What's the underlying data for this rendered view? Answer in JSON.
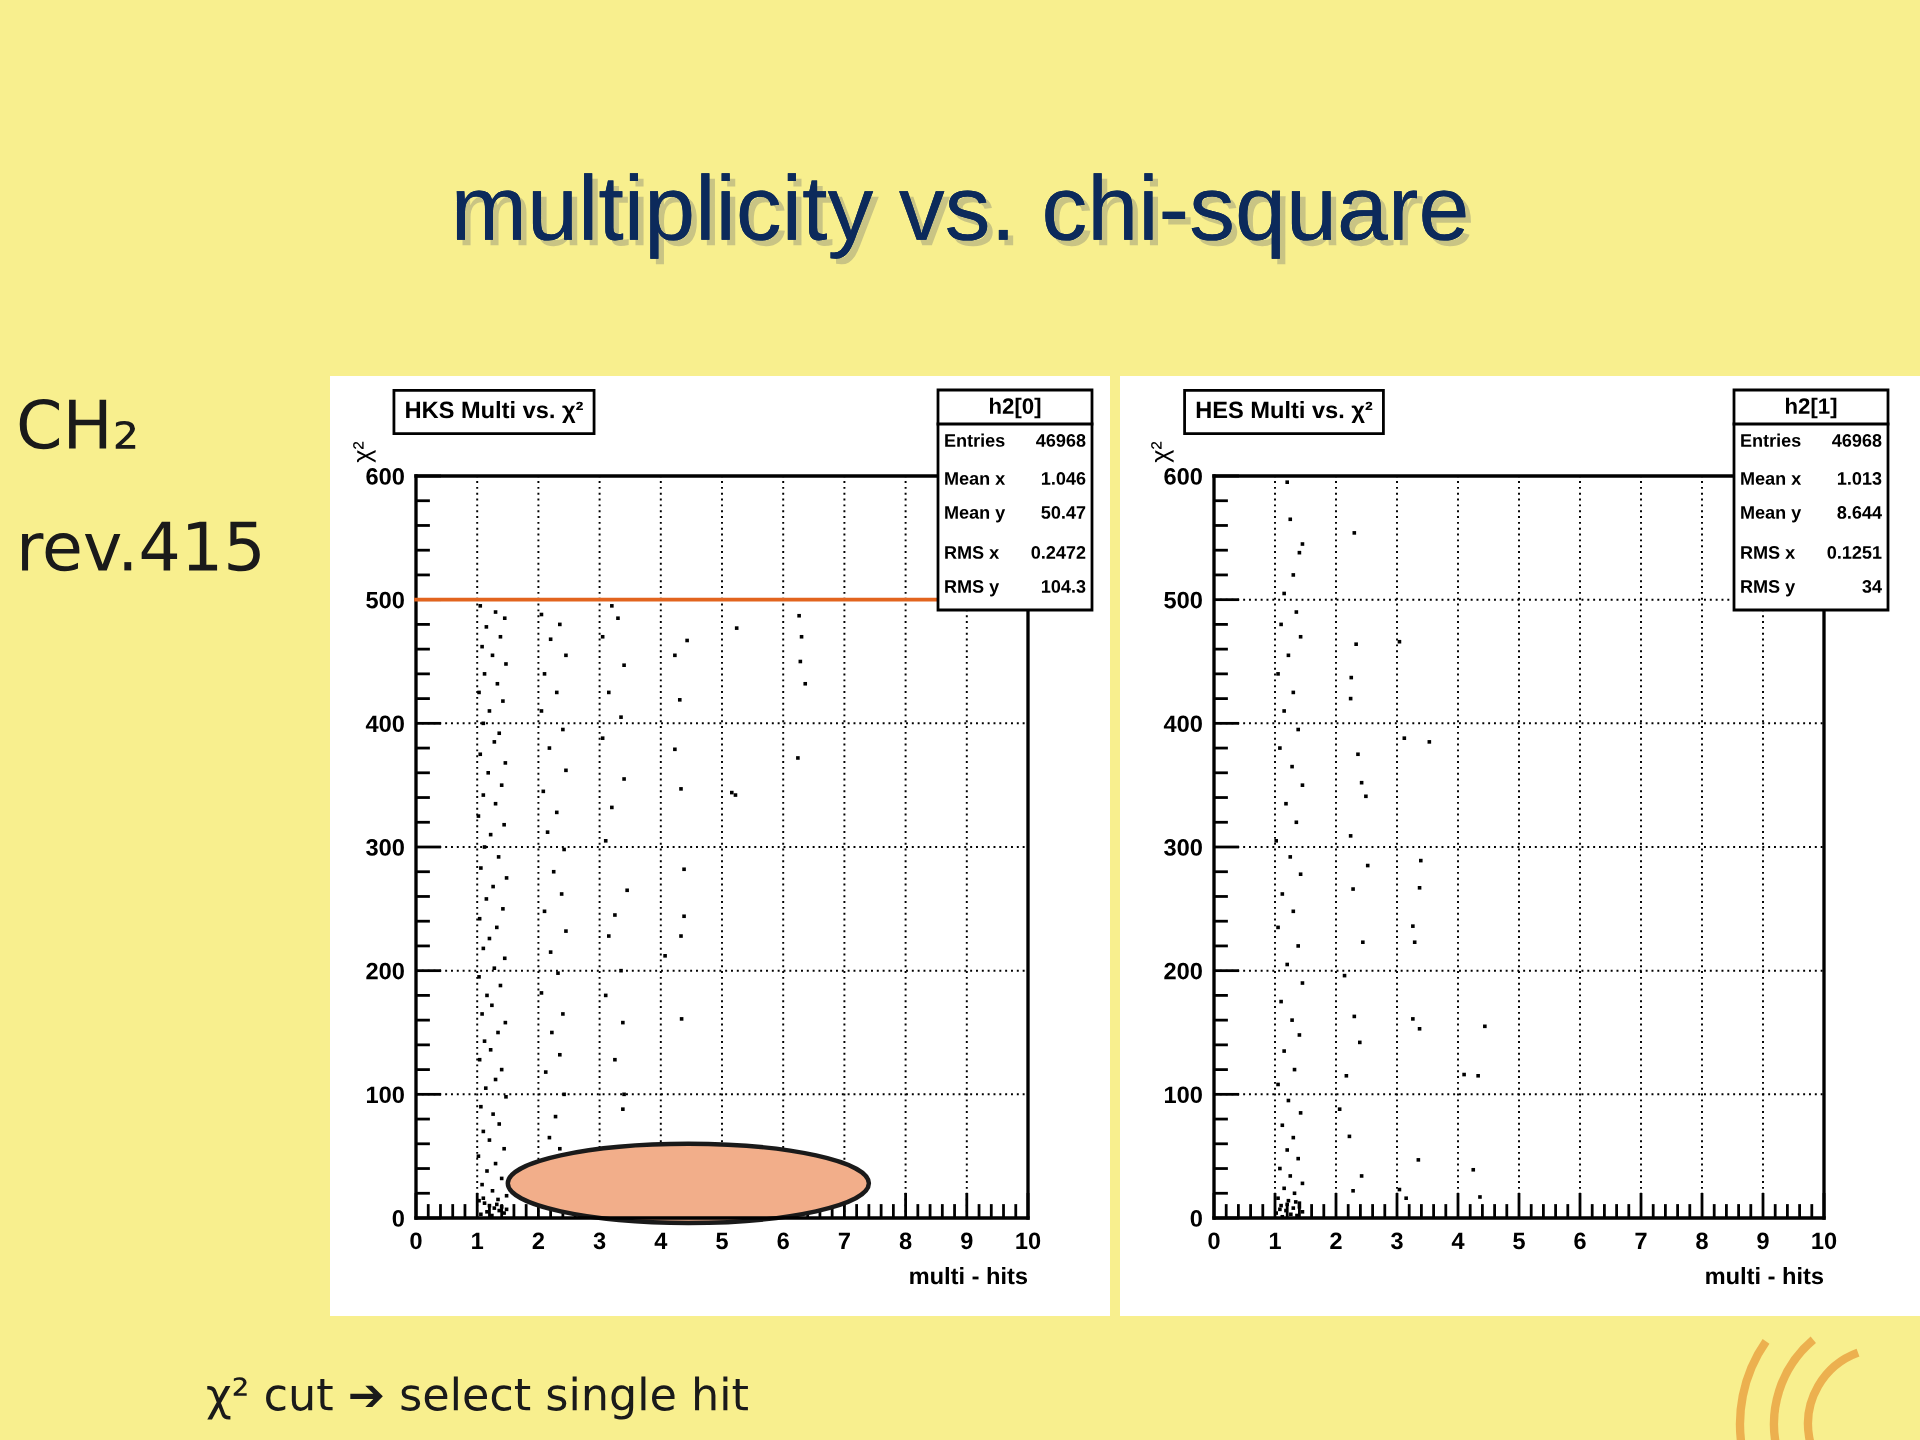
{
  "chart_data": [
    {
      "type": "other",
      "title": "multiplicity vs. chi-square",
      "annotations": [
        "CH₂",
        "rev.415",
        "χ² cut ➔ select single hit"
      ]
    },
    {
      "type": "scatter",
      "title": "HKS Multi vs. χ²",
      "xlabel": "multi - hits",
      "ylabel": "χ²",
      "xlim": [
        0,
        10
      ],
      "ylim": [
        0,
        600
      ],
      "xticks": [
        0,
        1,
        2,
        3,
        4,
        5,
        6,
        7,
        8,
        9,
        10
      ],
      "yticks": [
        0,
        100,
        200,
        300,
        400,
        500,
        600
      ],
      "grid": true,
      "marker": "square",
      "color": "#000000",
      "ref_lines": [
        {
          "axis": "y",
          "value": 500,
          "color": "#e2641e"
        }
      ],
      "annotations": [
        "h2[0]",
        "Entries",
        "46968",
        "Mean x",
        "1.046",
        "Mean y",
        "50.47",
        "RMS x",
        "0.2472",
        "RMS y",
        "104.3"
      ],
      "x": [
        1.05,
        1.3,
        1.45,
        1.15,
        1.38,
        1.08,
        1.25,
        1.47,
        1.12,
        1.33,
        1.03,
        1.42,
        1.2,
        1.1,
        1.36,
        1.28,
        1.05,
        1.46,
        1.18,
        1.4,
        1.1,
        1.3,
        1.02,
        1.44,
        1.22,
        1.12,
        1.35,
        1.06,
        1.48,
        1.26,
        1.15,
        1.42,
        1.04,
        1.32,
        1.2,
        1.1,
        1.45,
        1.28,
        1.03,
        1.38,
        1.16,
        1.24,
        1.08,
        1.46,
        1.34,
        1.12,
        1.22,
        1.04,
        1.4,
        1.3,
        1.14,
        1.47,
        1.06,
        1.26,
        1.36,
        1.1,
        1.2,
        1.44,
        1.02,
        1.3,
        1.16,
        1.4,
        1.08,
        1.25,
        1.48,
        1.03,
        1.12,
        1.2,
        1.28,
        1.36,
        1.44,
        1.06,
        1.16,
        1.24,
        1.32,
        1.4,
        1.48,
        1.1,
        1.34,
        2.05,
        2.35,
        2.2,
        2.45,
        2.1,
        2.3,
        2.05,
        2.4,
        2.18,
        2.45,
        2.08,
        2.3,
        2.15,
        2.42,
        2.25,
        2.38,
        2.1,
        2.45,
        2.2,
        2.32,
        2.05,
        2.4,
        2.22,
        2.35,
        2.12,
        2.42,
        2.28,
        2.18,
        2.35,
        3.2,
        3.3,
        3.05,
        3.4,
        3.15,
        3.35,
        3.05,
        3.4,
        3.2,
        3.1,
        3.45,
        3.25,
        3.15,
        3.35,
        3.1,
        3.38,
        3.25,
        3.4,
        3.38,
        4.43,
        4.23,
        4.31,
        4.23,
        4.33,
        4.38,
        4.38,
        4.33,
        4.07,
        4.34,
        5.24,
        5.16,
        5.22,
        6.26,
        6.3,
        6.28,
        6.36,
        6.24
      ],
      "values": [
        495,
        490,
        485,
        478,
        470,
        462,
        455,
        448,
        440,
        432,
        425,
        418,
        410,
        400,
        392,
        385,
        375,
        368,
        360,
        350,
        342,
        335,
        325,
        318,
        310,
        300,
        292,
        283,
        275,
        268,
        258,
        250,
        242,
        235,
        226,
        218,
        210,
        202,
        195,
        188,
        180,
        172,
        165,
        158,
        150,
        143,
        136,
        128,
        120,
        112,
        105,
        98,
        90,
        84,
        76,
        70,
        63,
        56,
        50,
        44,
        38,
        32,
        27,
        22,
        18,
        14,
        12,
        10,
        8,
        6,
        4,
        3,
        5,
        2,
        11,
        9,
        7,
        16,
        15,
        488,
        480,
        468,
        455,
        440,
        425,
        410,
        395,
        380,
        362,
        345,
        328,
        312,
        298,
        280,
        262,
        248,
        232,
        215,
        198,
        182,
        165,
        150,
        132,
        118,
        100,
        82,
        65,
        56,
        495,
        485,
        470,
        447,
        425,
        405,
        388,
        355,
        332,
        305,
        265,
        245,
        228,
        200,
        180,
        158,
        128,
        100,
        88,
        467,
        455,
        419,
        379,
        347,
        282,
        244,
        228,
        212,
        161,
        477,
        344,
        342,
        487,
        470,
        450,
        432,
        372
      ]
    },
    {
      "type": "scatter",
      "title": "HES Multi vs. χ²",
      "xlabel": "multi - hits",
      "ylabel": "χ²",
      "xlim": [
        0,
        10
      ],
      "ylim": [
        0,
        600
      ],
      "xticks": [
        0,
        1,
        2,
        3,
        4,
        5,
        6,
        7,
        8,
        9,
        10
      ],
      "yticks": [
        0,
        100,
        200,
        300,
        400,
        500,
        600
      ],
      "grid": true,
      "marker": "square",
      "color": "#000000",
      "annotations": [
        "h2[1]",
        "Entries",
        "46968",
        "Mean x",
        "1.013",
        "Mean y",
        "8.644",
        "RMS x",
        "0.1251",
        "RMS y",
        "34"
      ],
      "x": [
        1.2,
        1.25,
        1.45,
        1.4,
        1.3,
        1.15,
        1.35,
        1.1,
        1.42,
        1.22,
        1.05,
        1.3,
        1.15,
        1.38,
        1.08,
        1.28,
        1.45,
        1.18,
        1.35,
        1.02,
        1.25,
        1.42,
        1.12,
        1.3,
        1.05,
        1.38,
        1.2,
        1.45,
        1.1,
        1.28,
        1.4,
        1.15,
        1.32,
        1.05,
        1.22,
        1.42,
        1.12,
        1.3,
        1.2,
        1.38,
        1.08,
        1.25,
        1.45,
        1.15,
        1.32,
        1.05,
        1.22,
        1.4,
        1.1,
        1.3,
        1.18,
        1.45,
        1.02,
        1.26,
        1.36,
        1.12,
        1.4,
        1.2,
        1.34,
        1.08,
        2.3,
        2.33,
        2.25,
        2.24,
        2.36,
        2.42,
        2.49,
        2.24,
        2.52,
        2.28,
        2.44,
        2.14,
        2.3,
        2.39,
        2.17,
        2.06,
        2.22,
        2.42,
        2.28,
        3.04,
        3.12,
        3.53,
        3.39,
        3.37,
        3.26,
        3.29,
        3.26,
        3.37,
        3.35,
        3.04,
        3.15,
        4.44,
        4.1,
        4.33,
        4.25,
        4.36
      ],
      "values": [
        595,
        565,
        545,
        538,
        520,
        505,
        490,
        480,
        470,
        455,
        440,
        425,
        410,
        395,
        380,
        365,
        350,
        335,
        320,
        305,
        292,
        278,
        262,
        248,
        235,
        220,
        205,
        190,
        175,
        160,
        148,
        135,
        120,
        108,
        95,
        85,
        75,
        65,
        55,
        48,
        40,
        34,
        28,
        24,
        20,
        16,
        14,
        12,
        10,
        8,
        6,
        5,
        4,
        3,
        2,
        1,
        9,
        11,
        13,
        7,
        554,
        464,
        437,
        420,
        375,
        352,
        341,
        309,
        285,
        266,
        223,
        196,
        163,
        142,
        115,
        88,
        66,
        34,
        22,
        466,
        388,
        385,
        289,
        267,
        236,
        223,
        161,
        153,
        47,
        23,
        16,
        155,
        116,
        115,
        39,
        17
      ]
    }
  ]
}
